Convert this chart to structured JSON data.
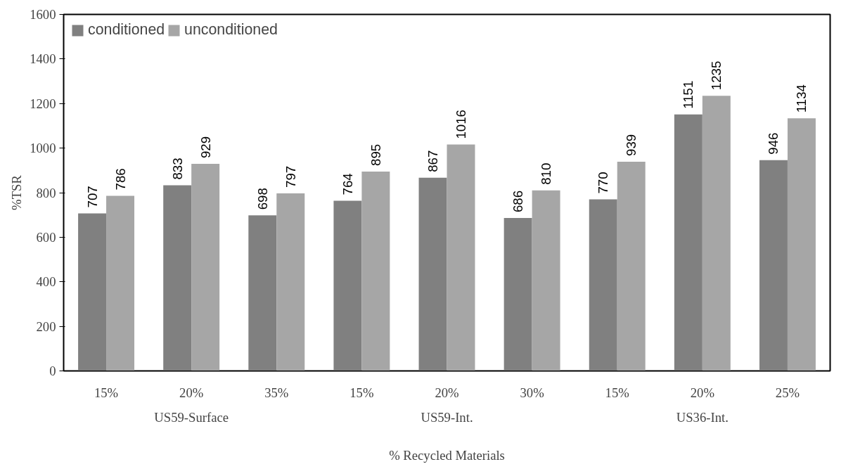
{
  "chart_data": {
    "type": "bar",
    "xlabel": "% Recycled Materials",
    "ylabel": "%TSR",
    "categories": [
      "15%",
      "20%",
      "35%",
      "15%",
      "20%",
      "30%",
      "15%",
      "20%",
      "25%"
    ],
    "series": [
      {
        "name": "conditioned",
        "color": "#808080",
        "values": [
          707,
          833,
          698,
          764,
          867,
          686,
          770,
          1151,
          946
        ]
      },
      {
        "name": "unconditioned",
        "color": "#a6a6a6",
        "values": [
          786,
          929,
          797,
          895,
          1016,
          810,
          939,
          1235,
          1134
        ]
      }
    ],
    "annotations": [
      "US59-Surface",
      "US59-Int.",
      "US36-Int."
    ],
    "ylim": [
      0,
      1600
    ],
    "yticks": [
      0,
      200,
      400,
      600,
      800,
      1000,
      1200,
      1400,
      1600
    ],
    "grid": false,
    "legend": "top left",
    "data_labels": true
  }
}
